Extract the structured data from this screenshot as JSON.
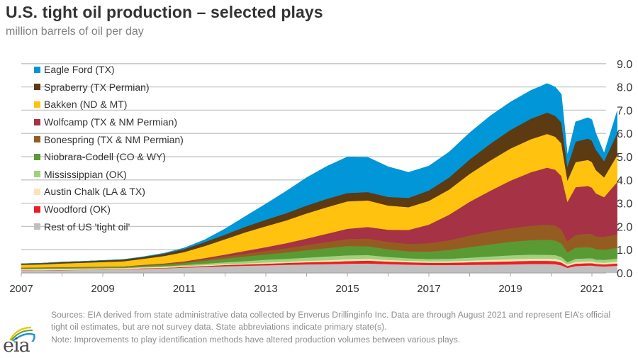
{
  "header": {
    "title": "U.S. tight oil production – selected plays",
    "subtitle": "million barrels of oil per day"
  },
  "footer": {
    "sources": "Sources: EIA derived from state administrative data collected by Enverus Drillinginfo Inc. Data are through August 2021  and represent EIA’s official tight oil estimates, but are not survey data. State abbreviations indicate primary state(s).",
    "note": "Note: Improvements to play identification methods have altered production volumes between various plays.",
    "logo_text": "eia",
    "logo_icon": "eia-logo-arcs"
  },
  "chart_data": {
    "type": "area",
    "stacked": true,
    "title": "U.S. tight oil production – selected plays",
    "ylabel": "million barrels of oil per day",
    "xlabel": "",
    "xlim": [
      2007.0,
      2021.62
    ],
    "ylim": [
      0,
      9
    ],
    "y_ticks": [
      "0.0",
      "1.0",
      "2.0",
      "3.0",
      "4.0",
      "5.0",
      "6.0",
      "7.0",
      "8.0",
      "9.0"
    ],
    "y_tick_values": [
      0,
      1,
      2,
      3,
      4,
      5,
      6,
      7,
      8,
      9
    ],
    "y_axis_side": "right",
    "x_ticks": [
      "2007",
      "2009",
      "2011",
      "2013",
      "2015",
      "2017",
      "2019",
      "2021"
    ],
    "x_tick_values": [
      2007,
      2009,
      2011,
      2013,
      2015,
      2017,
      2019,
      2021
    ],
    "grid": "horizontal",
    "legend_position": "top-left",
    "x": [
      2007.0,
      2007.5,
      2008.0,
      2008.5,
      2009.0,
      2009.5,
      2010.0,
      2010.5,
      2011.0,
      2011.5,
      2012.0,
      2012.5,
      2013.0,
      2013.5,
      2014.0,
      2014.5,
      2015.0,
      2015.5,
      2016.0,
      2016.5,
      2017.0,
      2017.5,
      2018.0,
      2018.5,
      2019.0,
      2019.5,
      2019.9,
      2020.1,
      2020.25,
      2020.4,
      2020.6,
      2020.9,
      2021.0,
      2021.1,
      2021.3,
      2021.62
    ],
    "series": [
      {
        "name": "Rest of US 'tight oil'",
        "color": "#bfbfbf",
        "values": [
          0.1,
          0.11,
          0.12,
          0.13,
          0.15,
          0.16,
          0.18,
          0.2,
          0.23,
          0.26,
          0.29,
          0.31,
          0.33,
          0.35,
          0.37,
          0.38,
          0.4,
          0.41,
          0.38,
          0.36,
          0.34,
          0.34,
          0.35,
          0.36,
          0.37,
          0.39,
          0.39,
          0.38,
          0.33,
          0.22,
          0.3,
          0.32,
          0.32,
          0.3,
          0.28,
          0.31
        ]
      },
      {
        "name": "Woodford (OK)",
        "color": "#ed1c24",
        "values": [
          0.01,
          0.01,
          0.01,
          0.01,
          0.01,
          0.01,
          0.02,
          0.02,
          0.03,
          0.04,
          0.05,
          0.06,
          0.07,
          0.08,
          0.09,
          0.1,
          0.11,
          0.12,
          0.11,
          0.1,
          0.1,
          0.1,
          0.11,
          0.12,
          0.13,
          0.13,
          0.13,
          0.13,
          0.12,
          0.08,
          0.1,
          0.1,
          0.1,
          0.09,
          0.09,
          0.1
        ]
      },
      {
        "name": "Austin Chalk (LA & TX)",
        "color": "#fbe4b4",
        "values": [
          0.05,
          0.05,
          0.05,
          0.05,
          0.04,
          0.04,
          0.04,
          0.04,
          0.04,
          0.04,
          0.04,
          0.04,
          0.05,
          0.05,
          0.06,
          0.07,
          0.08,
          0.08,
          0.07,
          0.06,
          0.06,
          0.06,
          0.07,
          0.08,
          0.09,
          0.1,
          0.1,
          0.1,
          0.09,
          0.06,
          0.08,
          0.08,
          0.08,
          0.07,
          0.07,
          0.08
        ]
      },
      {
        "name": "Mississippian (OK)",
        "color": "#9fd27e",
        "values": [
          0.01,
          0.01,
          0.01,
          0.01,
          0.01,
          0.01,
          0.02,
          0.03,
          0.04,
          0.06,
          0.08,
          0.1,
          0.12,
          0.13,
          0.14,
          0.16,
          0.17,
          0.16,
          0.13,
          0.11,
          0.1,
          0.11,
          0.13,
          0.15,
          0.17,
          0.17,
          0.16,
          0.16,
          0.15,
          0.1,
          0.13,
          0.13,
          0.13,
          0.12,
          0.12,
          0.13
        ]
      },
      {
        "name": "Niobrara-Codell (CO & WY)",
        "color": "#5a9a34",
        "values": [
          0.04,
          0.04,
          0.04,
          0.04,
          0.04,
          0.04,
          0.05,
          0.06,
          0.08,
          0.12,
          0.16,
          0.2,
          0.23,
          0.27,
          0.32,
          0.36,
          0.4,
          0.38,
          0.33,
          0.3,
          0.32,
          0.38,
          0.45,
          0.52,
          0.58,
          0.62,
          0.65,
          0.63,
          0.58,
          0.42,
          0.48,
          0.48,
          0.46,
          0.44,
          0.44,
          0.46
        ]
      },
      {
        "name": "Bonespring (TX & NM Permian)",
        "color": "#955c22",
        "values": [
          0.02,
          0.02,
          0.02,
          0.02,
          0.02,
          0.02,
          0.03,
          0.04,
          0.05,
          0.07,
          0.09,
          0.12,
          0.15,
          0.18,
          0.22,
          0.26,
          0.3,
          0.33,
          0.32,
          0.32,
          0.36,
          0.42,
          0.5,
          0.55,
          0.58,
          0.62,
          0.65,
          0.64,
          0.6,
          0.48,
          0.55,
          0.58,
          0.58,
          0.55,
          0.56,
          0.58
        ]
      },
      {
        "name": "Wolfcamp (TX & NM Permian)",
        "color": "#a53245",
        "values": [
          0.0,
          0.0,
          0.0,
          0.0,
          0.0,
          0.0,
          0.01,
          0.02,
          0.03,
          0.05,
          0.08,
          0.12,
          0.16,
          0.22,
          0.28,
          0.36,
          0.44,
          0.5,
          0.52,
          0.6,
          0.8,
          1.1,
          1.45,
          1.75,
          2.05,
          2.3,
          2.45,
          2.4,
          2.3,
          1.7,
          2.05,
          2.05,
          2.0,
          1.85,
          1.7,
          2.25
        ]
      },
      {
        "name": "Bakken (ND & MT)",
        "color": "#ffc20e",
        "values": [
          0.12,
          0.13,
          0.16,
          0.18,
          0.2,
          0.22,
          0.26,
          0.32,
          0.4,
          0.52,
          0.66,
          0.8,
          0.9,
          0.98,
          1.08,
          1.14,
          1.18,
          1.14,
          1.04,
          0.98,
          1.02,
          1.08,
          1.2,
          1.3,
          1.38,
          1.42,
          1.45,
          1.42,
          1.4,
          0.92,
          1.08,
          1.12,
          1.1,
          1.0,
          0.85,
          1.15
        ]
      },
      {
        "name": "Spraberry (TX Permian)",
        "color": "#5c3a12",
        "values": [
          0.05,
          0.05,
          0.06,
          0.06,
          0.07,
          0.08,
          0.08,
          0.1,
          0.13,
          0.17,
          0.2,
          0.24,
          0.28,
          0.31,
          0.34,
          0.36,
          0.36,
          0.36,
          0.37,
          0.4,
          0.45,
          0.52,
          0.62,
          0.72,
          0.8,
          0.88,
          0.92,
          0.9,
          0.9,
          0.6,
          0.88,
          0.92,
          0.92,
          0.88,
          0.7,
          0.95
        ]
      },
      {
        "name": "Eagle Ford (TX)",
        "color": "#0096d7",
        "values": [
          0.0,
          0.0,
          0.0,
          0.0,
          0.0,
          0.0,
          0.01,
          0.02,
          0.05,
          0.1,
          0.25,
          0.45,
          0.68,
          0.95,
          1.2,
          1.4,
          1.55,
          1.5,
          1.3,
          1.1,
          1.05,
          1.1,
          1.15,
          1.2,
          1.2,
          1.22,
          1.25,
          1.24,
          1.22,
          0.5,
          0.85,
          0.9,
          0.9,
          0.7,
          0.35,
          0.95
        ]
      }
    ]
  }
}
